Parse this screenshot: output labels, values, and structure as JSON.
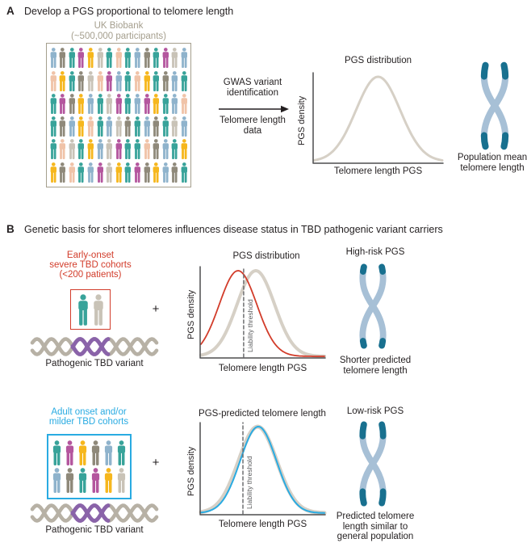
{
  "colors": {
    "red": "#d23c2a",
    "blue": "#29abe2",
    "gray_curve": "#d6d0c6",
    "axis": "#4d4d4f",
    "threshold": "#6d6e70",
    "ukb": "#a59f8e",
    "chromosome_body": "#a7c0d6",
    "chromosome_cap": "#18708f",
    "dna_strand": "#b7b1a5",
    "dna_variant": "#8a63a9",
    "text": "#231f20"
  },
  "palette": {
    "t": "#38a39a",
    "b": "#8fb3cc",
    "g": "#8f897a",
    "l": "#c9c3b7",
    "p": "#b4569e",
    "y": "#f6b71d",
    "s": "#f0c3a8"
  },
  "panelA": {
    "label": "A",
    "title": "Develop a PGS proportional to telomere length",
    "ukb_header": [
      "UK Biobank",
      "(~500,000 participants)"
    ],
    "ukb_grid": [
      "bgtpyltstbgtplb",
      "sytglspbtsytgbt",
      "tpgybtlptbpytbs",
      "tgbystblgtbgtlb",
      "tsltyblpttsgbty",
      "ygstbplytpgybgt"
    ],
    "arrow_top": [
      "GWAS variant",
      "identification"
    ],
    "arrow_bottom": [
      "Telomere length",
      "data"
    ],
    "chromosome_label": [
      "Population mean",
      "telomere length"
    ],
    "chromosome_cap_pct": 13
  },
  "panelB": {
    "label": "B",
    "title": "Genetic basis for short telomeres influences disease status in TBD pathogenic variant carriers",
    "row1": {
      "cohort_lines": [
        "Early-onset",
        "severe TBD cohorts",
        "(<200 patients)"
      ],
      "box_people": "tl",
      "dna_label": "Pathogenic TBD variant",
      "plus": "+",
      "chromosome_title": "High-risk PGS",
      "chromosome_label": [
        "Shorter predicted",
        "telomere length"
      ],
      "chromosome_cap_pct": 5.5
    },
    "row2": {
      "cohort_lines": [
        "Adult onset and/or",
        "milder TBD cohorts"
      ],
      "box_grid": [
        "tpygbt",
        "bgtpyl"
      ],
      "dna_label": "Pathogenic TBD variant",
      "plus": "+",
      "chromosome_title": "Low-risk PGS",
      "chromosome_label": [
        "Predicted telomere",
        "length similar to",
        "general population"
      ],
      "chromosome_cap_pct": 14
    }
  },
  "chart_data": [
    {
      "id": "plotA",
      "type": "line",
      "title": "PGS distribution",
      "xlabel": "Telomere length PGS",
      "ylabel": "PGS density",
      "axis_numeric": false,
      "grid": false,
      "legend": "none",
      "threshold": null,
      "series": [
        {
          "name": "UK Biobank telomere length PGS distribution",
          "color": "#d6d0c6",
          "stroke": 3,
          "mean": 0.5,
          "sd": 0.17,
          "height": 1.0
        }
      ]
    },
    {
      "id": "plotB1",
      "type": "line",
      "title": "PGS distribution",
      "xlabel": "Telomere length PGS",
      "ylabel": "PGS density",
      "axis_numeric": false,
      "grid": false,
      "legend": "none",
      "threshold": 0.348,
      "threshold_label": "Liability threshold",
      "series": [
        {
          "name": "General population distribution",
          "color": "#d6d0c6",
          "stroke": 4,
          "mean": 0.445,
          "sd": 0.15,
          "height": 1.0
        },
        {
          "name": "Early-onset severe TBD cohort (shifted to shorter telomere PGS)",
          "color": "#d23c2a",
          "stroke": 1.8,
          "mean": 0.303,
          "sd": 0.15,
          "height": 1.0
        }
      ]
    },
    {
      "id": "plotB2",
      "type": "line",
      "title": "PGS-predicted telomere length",
      "xlabel": "Telomere length PGS",
      "ylabel": "PGS density",
      "axis_numeric": false,
      "grid": false,
      "legend": "none",
      "threshold": 0.342,
      "threshold_label": "Liability threshold",
      "series": [
        {
          "name": "General population distribution",
          "color": "#d6d0c6",
          "stroke": 5,
          "mean": 0.46,
          "sd": 0.152,
          "height": 1.0
        },
        {
          "name": "Adult onset / milder TBD cohort (similar to general population)",
          "color": "#29abe2",
          "stroke": 2,
          "mean": 0.465,
          "sd": 0.145,
          "height": 1.0
        }
      ]
    }
  ]
}
